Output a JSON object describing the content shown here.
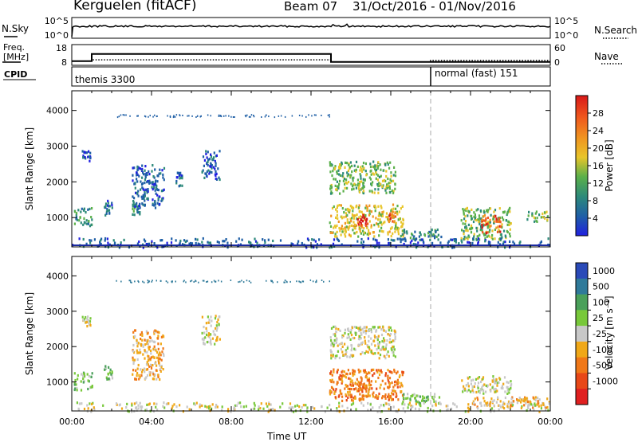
{
  "header": {
    "station": "Kerguelen (fitACF)",
    "beam": "Beam 07",
    "dates": "31/Oct/2016 - 01/Nov/2016"
  },
  "side_labels": {
    "nsky": "N.Sky",
    "nsearch": "N.Search",
    "freq_line1": "Freq.",
    "freq_line2": "[MHz]",
    "nave": "Nave",
    "cpid": "CPID"
  },
  "cpid_segments": [
    {
      "label": "themis 3300",
      "start_h": 0
    },
    {
      "label": "normal (fast) 151",
      "start_h": 18
    }
  ],
  "colors": {
    "power": [
      "#2020e0",
      "#1f5fa6",
      "#2d8a7a",
      "#5ab04a",
      "#e8c52a",
      "#f09420",
      "#f05a1e",
      "#d81818"
    ],
    "velocity": [
      "#2a4ab8",
      "#2f7a9a",
      "#4aa05a",
      "#78c83a",
      "#c8c8c8",
      "#f0a818",
      "#f07818",
      "#e84818",
      "#e02020"
    ]
  },
  "chart_data": [
    {
      "type": "line",
      "panel": "noise",
      "left_ticks": [
        "10^5",
        "10^0"
      ],
      "right_ticks": [
        "10^5",
        "10^0"
      ]
    },
    {
      "type": "line",
      "panel": "frequency-nave",
      "left_ticks": [
        "18",
        "8"
      ],
      "right_ticks": [
        "60",
        "0"
      ],
      "frequency_mhz": {
        "x": [
          0,
          1,
          1,
          13,
          13,
          24
        ],
        "y": [
          10,
          10,
          13.5,
          13.5,
          9.6,
          9.6
        ]
      },
      "nave": {
        "x": [
          0,
          1,
          1,
          13,
          13,
          18,
          18,
          24
        ],
        "y": [
          12,
          12,
          16,
          16,
          10,
          10,
          14,
          14
        ]
      }
    },
    {
      "type": "heatmap",
      "panel": "power",
      "ylabel": "Slant Range [km]",
      "yticks": [
        1000,
        2000,
        3000,
        4000
      ],
      "ylim": [
        180,
        4550
      ],
      "xlim": [
        0,
        24
      ],
      "colorbar": {
        "label": "Power [dB]",
        "ticks": [
          4,
          8,
          12,
          16,
          20,
          24,
          28
        ],
        "range": [
          0,
          32
        ]
      },
      "echo_regions": [
        {
          "t0": 0.1,
          "t1": 1.0,
          "r0": 800,
          "r1": 1300,
          "level": 2
        },
        {
          "t0": 0.5,
          "t1": 0.9,
          "r0": 2600,
          "r1": 2900,
          "level": 1
        },
        {
          "t0": 1.6,
          "t1": 2.0,
          "r0": 1100,
          "r1": 1500,
          "level": 1
        },
        {
          "t0": 3.0,
          "t1": 3.4,
          "r0": 1100,
          "r1": 1400,
          "level": 2
        },
        {
          "t0": 3.0,
          "t1": 4.6,
          "r0": 1300,
          "r1": 2500,
          "level": 1
        },
        {
          "t0": 5.2,
          "t1": 5.5,
          "r0": 1900,
          "r1": 2300,
          "level": 1
        },
        {
          "t0": 6.5,
          "t1": 7.4,
          "r0": 2100,
          "r1": 2900,
          "level": 1
        },
        {
          "t0": 12.9,
          "t1": 16.2,
          "r0": 1700,
          "r1": 2600,
          "level": 3
        },
        {
          "t0": 12.9,
          "t1": 16.6,
          "r0": 500,
          "r1": 1400,
          "level": 4
        },
        {
          "t0": 14.3,
          "t1": 14.8,
          "r0": 800,
          "r1": 1100,
          "level": 7
        },
        {
          "t0": 15.8,
          "t1": 16.2,
          "r0": 900,
          "r1": 1200,
          "level": 6
        },
        {
          "t0": 16.5,
          "t1": 18.5,
          "r0": 400,
          "r1": 700,
          "level": 2
        },
        {
          "t0": 19.5,
          "t1": 22.0,
          "r0": 400,
          "r1": 1300,
          "level": 3
        },
        {
          "t0": 20.5,
          "t1": 21.5,
          "r0": 600,
          "r1": 1100,
          "level": 6
        },
        {
          "t0": 22.8,
          "t1": 23.9,
          "r0": 900,
          "r1": 1200,
          "level": 3
        },
        {
          "t0": 0.0,
          "t1": 24.0,
          "r0": 190,
          "r1": 450,
          "level": 1
        }
      ]
    },
    {
      "type": "heatmap",
      "panel": "velocity",
      "ylabel": "Slant Range [km]",
      "yticks": [
        1000,
        2000,
        3000,
        4000
      ],
      "ylim": [
        180,
        4550
      ],
      "xlim": [
        0,
        24
      ],
      "xticks": [
        "00:00",
        "04:00",
        "08:00",
        "12:00",
        "16:00",
        "20:00",
        "00:00"
      ],
      "xlabel": "Time UT",
      "colorbar": {
        "label": "Velocity [m s⁻¹]",
        "ticks": [
          "1000",
          "500",
          "100",
          "25",
          "-25",
          "-100",
          "-500",
          "-1000"
        ]
      },
      "echo_regions": [
        {
          "t0": 0.1,
          "t1": 1.0,
          "r0": 800,
          "r1": 1300,
          "level": 3
        },
        {
          "t0": 0.5,
          "t1": 0.9,
          "r0": 2600,
          "r1": 2900,
          "level": 4
        },
        {
          "t0": 1.6,
          "t1": 2.0,
          "r0": 1100,
          "r1": 1500,
          "level": 3
        },
        {
          "t0": 3.0,
          "t1": 4.6,
          "r0": 1100,
          "r1": 2500,
          "level": 5
        },
        {
          "t0": 6.5,
          "t1": 7.4,
          "r0": 2100,
          "r1": 2900,
          "level": 4
        },
        {
          "t0": 12.9,
          "t1": 16.2,
          "r0": 1700,
          "r1": 2600,
          "level": 4
        },
        {
          "t0": 12.9,
          "t1": 16.6,
          "r0": 500,
          "r1": 1400,
          "level": 6
        },
        {
          "t0": 14.3,
          "t1": 15.0,
          "r0": 600,
          "r1": 1100,
          "level": 6
        },
        {
          "t0": 16.5,
          "t1": 18.5,
          "r0": 400,
          "r1": 700,
          "level": 3
        },
        {
          "t0": 19.5,
          "t1": 22.0,
          "r0": 700,
          "r1": 1200,
          "level": 4
        },
        {
          "t0": 20.0,
          "t1": 23.9,
          "r0": 300,
          "r1": 600,
          "level": 5
        },
        {
          "t0": 0.0,
          "t1": 24.0,
          "r0": 190,
          "r1": 450,
          "level": 4
        }
      ]
    }
  ]
}
